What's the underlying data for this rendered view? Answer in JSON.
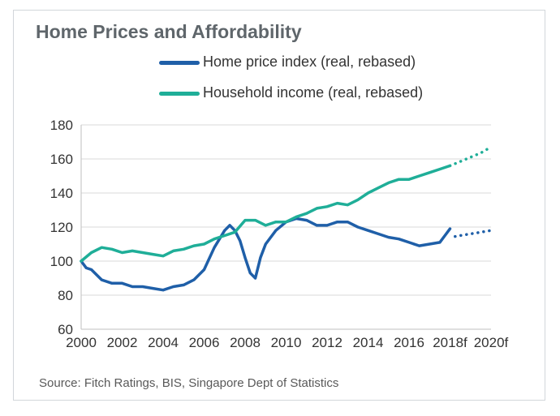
{
  "chart_data": {
    "type": "line",
    "title": "Home Prices and Affordability",
    "source": "Source: Fitch Ratings, BIS, Singapore Dept of Statistics",
    "xlabel": "",
    "ylabel": "",
    "xlim": [
      2000,
      2020
    ],
    "ylim": [
      60,
      180
    ],
    "x_ticks": [
      "2000",
      "2002",
      "2004",
      "2006",
      "2008",
      "2010",
      "2012",
      "2014",
      "2016",
      "2018f",
      "2020f"
    ],
    "y_ticks": [
      60,
      80,
      100,
      120,
      140,
      160,
      180
    ],
    "grid": "horizontal",
    "legend_position": "top",
    "series": [
      {
        "name": "Home price index (real, rebased)",
        "color": "#1f5fa8",
        "actual": [
          [
            2000.0,
            100
          ],
          [
            2000.25,
            96
          ],
          [
            2000.5,
            95
          ],
          [
            2001.0,
            89
          ],
          [
            2001.5,
            87
          ],
          [
            2002.0,
            87
          ],
          [
            2002.5,
            85
          ],
          [
            2003.0,
            85
          ],
          [
            2003.5,
            84
          ],
          [
            2004.0,
            83
          ],
          [
            2004.5,
            85
          ],
          [
            2005.0,
            86
          ],
          [
            2005.5,
            89
          ],
          [
            2006.0,
            95
          ],
          [
            2006.5,
            108
          ],
          [
            2007.0,
            118
          ],
          [
            2007.25,
            121
          ],
          [
            2007.5,
            118
          ],
          [
            2007.75,
            112
          ],
          [
            2008.0,
            102
          ],
          [
            2008.25,
            93
          ],
          [
            2008.5,
            90
          ],
          [
            2008.75,
            102
          ],
          [
            2009.0,
            110
          ],
          [
            2009.5,
            118
          ],
          [
            2010.0,
            123
          ],
          [
            2010.5,
            125
          ],
          [
            2011.0,
            124
          ],
          [
            2011.5,
            121
          ],
          [
            2012.0,
            121
          ],
          [
            2012.5,
            123
          ],
          [
            2013.0,
            123
          ],
          [
            2013.5,
            120
          ],
          [
            2014.0,
            118
          ],
          [
            2014.5,
            116
          ],
          [
            2015.0,
            114
          ],
          [
            2015.5,
            113
          ],
          [
            2016.0,
            111
          ],
          [
            2016.5,
            109
          ],
          [
            2017.0,
            110
          ],
          [
            2017.5,
            111
          ],
          [
            2017.75,
            115
          ],
          [
            2018.0,
            119
          ]
        ],
        "forecast": [
          [
            2018.25,
            114.5
          ],
          [
            2018.5,
            115
          ],
          [
            2018.75,
            115.5
          ],
          [
            2019.0,
            116
          ],
          [
            2019.25,
            116.5
          ],
          [
            2019.5,
            117
          ],
          [
            2019.75,
            117.5
          ],
          [
            2020.0,
            118
          ]
        ]
      },
      {
        "name": "Household income (real, rebased)",
        "color": "#1fae98",
        "actual": [
          [
            2000.0,
            100
          ],
          [
            2000.5,
            105
          ],
          [
            2001.0,
            108
          ],
          [
            2001.5,
            107
          ],
          [
            2002.0,
            105
          ],
          [
            2002.5,
            106
          ],
          [
            2003.0,
            105
          ],
          [
            2003.5,
            104
          ],
          [
            2004.0,
            103
          ],
          [
            2004.5,
            106
          ],
          [
            2005.0,
            107
          ],
          [
            2005.5,
            109
          ],
          [
            2006.0,
            110
          ],
          [
            2006.5,
            113
          ],
          [
            2007.0,
            115
          ],
          [
            2007.5,
            117
          ],
          [
            2008.0,
            124
          ],
          [
            2008.5,
            124
          ],
          [
            2009.0,
            121
          ],
          [
            2009.5,
            123
          ],
          [
            2010.0,
            123
          ],
          [
            2010.5,
            126
          ],
          [
            2011.0,
            128
          ],
          [
            2011.5,
            131
          ],
          [
            2012.0,
            132
          ],
          [
            2012.5,
            134
          ],
          [
            2013.0,
            133
          ],
          [
            2013.5,
            136
          ],
          [
            2014.0,
            140
          ],
          [
            2014.5,
            143
          ],
          [
            2015.0,
            146
          ],
          [
            2015.5,
            148
          ],
          [
            2016.0,
            148
          ],
          [
            2016.5,
            150
          ],
          [
            2017.0,
            152
          ],
          [
            2017.5,
            154
          ],
          [
            2018.0,
            156
          ]
        ],
        "forecast": [
          [
            2018.0,
            156
          ],
          [
            2018.5,
            158.5
          ],
          [
            2019.0,
            161
          ],
          [
            2019.5,
            163.5
          ],
          [
            2020.0,
            167
          ]
        ]
      }
    ]
  }
}
